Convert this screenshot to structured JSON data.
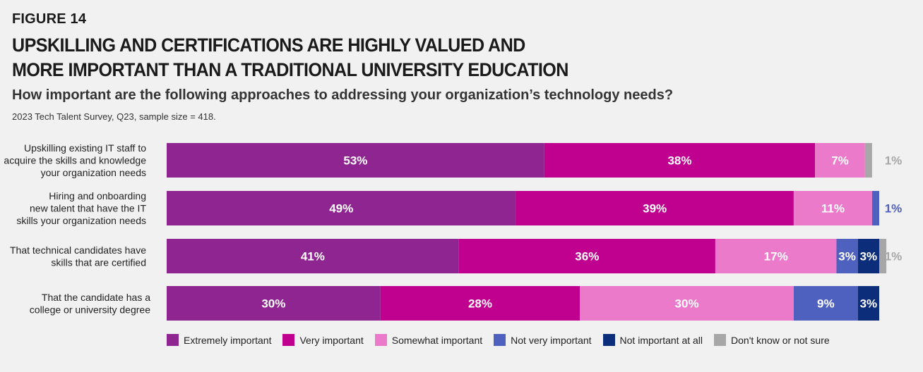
{
  "figure_label": "FIGURE 14",
  "title_lines": [
    "UPSKILLING AND CERTIFICATIONS ARE HIGHLY VALUED AND",
    "MORE IMPORTANT THAN A TRADITIONAL UNIVERSITY EDUCATION"
  ],
  "subtitle": "How important are the following approaches to addressing your organization’s technology needs?",
  "source": "2023 Tech Talent Survey, Q23, sample size = 418.",
  "chart_data": {
    "type": "bar",
    "orientation": "horizontal",
    "stacked": true,
    "categories": [
      [
        "Upskilling existing IT staff to",
        "acquire the skills and knowledge",
        "your organization needs"
      ],
      [
        "Hiring and onboarding",
        "new talent that have the IT",
        "skills your organization needs"
      ],
      [
        "That technical candidates have",
        "skills that are certified"
      ],
      [
        "That the candidate has a",
        "college or university degree"
      ]
    ],
    "series": [
      {
        "name": "Extremely important",
        "color": "#8e2590",
        "values": [
          53,
          49,
          41,
          30
        ]
      },
      {
        "name": "Very important",
        "color": "#c0008f",
        "values": [
          38,
          39,
          36,
          28
        ]
      },
      {
        "name": "Somewhat important",
        "color": "#ec7acb",
        "values": [
          7,
          11,
          17,
          30
        ]
      },
      {
        "name": "Not very important",
        "color": "#4f61bf",
        "values": [
          0,
          1,
          3,
          9
        ]
      },
      {
        "name": "Not important at all",
        "color": "#0c2e7a",
        "values": [
          0,
          0,
          3,
          3
        ]
      },
      {
        "name": "Don't know or not sure",
        "color": "#a7a7a7",
        "values": [
          1,
          0,
          1,
          0
        ]
      }
    ],
    "outside_labels": [
      {
        "text": "1%",
        "color": "#a7a7a7"
      },
      {
        "text": "1%",
        "color": "#4f61bf"
      },
      {
        "text": "1%",
        "color": "#a7a7a7"
      },
      {
        "text": "",
        "color": "#a7a7a7"
      }
    ],
    "xlim": [
      0,
      100
    ],
    "grid": false,
    "legend_position": "bottom"
  }
}
